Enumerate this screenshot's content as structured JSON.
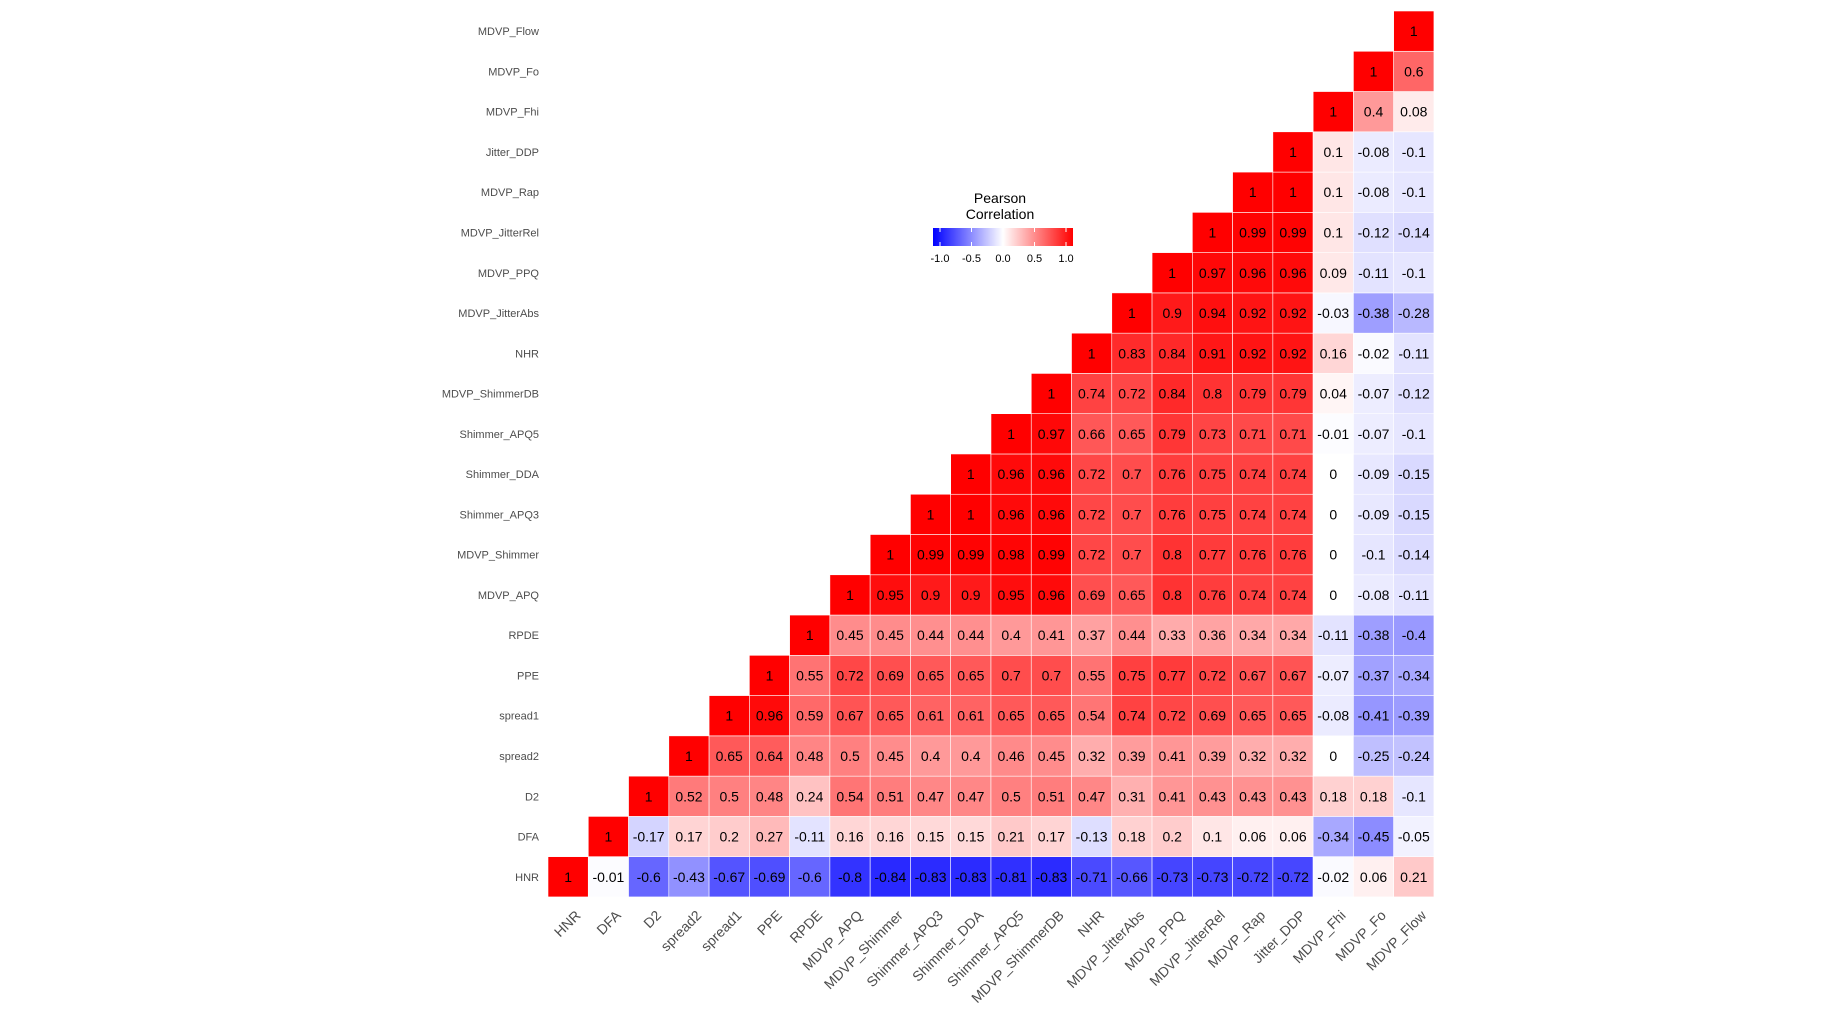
{
  "chart_data": {
    "type": "heatmap",
    "title": "",
    "variables": [
      "HNR",
      "DFA",
      "D2",
      "spread2",
      "spread1",
      "PPE",
      "RPDE",
      "MDVP_APQ",
      "MDVP_Shimmer",
      "Shimmer_APQ3",
      "Shimmer_DDA",
      "Shimmer_APQ5",
      "MDVP_ShimmerDB",
      "NHR",
      "MDVP_JitterAbs",
      "MDVP_PPQ",
      "MDVP_JitterRel",
      "MDVP_Rap",
      "Jitter_DDP",
      "MDVP_Fhi",
      "MDVP_Fo",
      "MDVP_Flow"
    ],
    "x_labels": [
      "HNR",
      "DFA",
      "D2",
      "spread2",
      "spread1",
      "PPE",
      "RPDE",
      "MDVP_APQ",
      "MDVP_Shimmer",
      "Shimmer_APQ3",
      "Shimmer_DDA",
      "Shimmer_APQ5",
      "MDVP_ShimmerDB",
      "NHR",
      "MDVP_JitterAbs",
      "MDVP_PPQ",
      "MDVP_JitterRel",
      "MDVP_Rap",
      "Jitter_DDP",
      "MDVP_Fhi",
      "MDVP_Fo",
      "MDVP_Flow"
    ],
    "y_labels": [
      "HNR",
      "DFA",
      "D2",
      "spread2",
      "spread1",
      "PPE",
      "RPDE",
      "MDVP_APQ",
      "MDVP_Shimmer",
      "Shimmer_APQ3",
      "Shimmer_DDA",
      "Shimmer_APQ5",
      "MDVP_ShimmerDB",
      "NHR",
      "MDVP_JitterAbs",
      "MDVP_PPQ",
      "MDVP_JitterRel",
      "MDVP_Rap",
      "Jitter_DDP",
      "MDVP_Fhi",
      "MDVP_Fo",
      "MDVP_Flow"
    ],
    "upper_triangle_by_column": [
      [
        1
      ],
      [
        -0.01,
        1
      ],
      [
        -0.6,
        -0.17,
        1
      ],
      [
        -0.43,
        0.17,
        0.52,
        1
      ],
      [
        -0.67,
        0.2,
        0.5,
        0.65,
        1
      ],
      [
        -0.69,
        0.27,
        0.48,
        0.64,
        0.96,
        1
      ],
      [
        -0.6,
        -0.11,
        0.24,
        0.48,
        0.59,
        0.55,
        1
      ],
      [
        -0.8,
        0.16,
        0.54,
        0.5,
        0.67,
        0.72,
        0.45,
        1
      ],
      [
        -0.84,
        0.16,
        0.51,
        0.45,
        0.65,
        0.69,
        0.45,
        0.95,
        1
      ],
      [
        -0.83,
        0.15,
        0.47,
        0.4,
        0.61,
        0.65,
        0.44,
        0.9,
        0.99,
        1
      ],
      [
        -0.83,
        0.15,
        0.47,
        0.4,
        0.61,
        0.65,
        0.44,
        0.9,
        0.99,
        1,
        1
      ],
      [
        -0.81,
        0.21,
        0.5,
        0.46,
        0.65,
        0.7,
        0.4,
        0.95,
        0.98,
        0.96,
        0.96,
        1
      ],
      [
        -0.83,
        0.17,
        0.51,
        0.45,
        0.65,
        0.7,
        0.41,
        0.96,
        0.99,
        0.96,
        0.96,
        0.97,
        1
      ],
      [
        -0.71,
        -0.13,
        0.47,
        0.32,
        0.54,
        0.55,
        0.37,
        0.69,
        0.72,
        0.72,
        0.72,
        0.66,
        0.74,
        1
      ],
      [
        -0.66,
        0.18,
        0.31,
        0.39,
        0.74,
        0.75,
        0.44,
        0.65,
        0.7,
        0.7,
        0.7,
        0.65,
        0.72,
        0.83,
        1
      ],
      [
        -0.73,
        0.2,
        0.41,
        0.41,
        0.72,
        0.77,
        0.33,
        0.8,
        0.8,
        0.76,
        0.76,
        0.79,
        0.84,
        0.84,
        0.9,
        1
      ],
      [
        -0.73,
        0.1,
        0.43,
        0.39,
        0.69,
        0.72,
        0.36,
        0.76,
        0.77,
        0.75,
        0.75,
        0.73,
        0.8,
        0.91,
        0.94,
        0.97,
        1
      ],
      [
        -0.72,
        0.06,
        0.43,
        0.32,
        0.65,
        0.67,
        0.34,
        0.74,
        0.76,
        0.74,
        0.74,
        0.71,
        0.79,
        0.92,
        0.92,
        0.96,
        0.99,
        1
      ],
      [
        -0.72,
        0.06,
        0.43,
        0.32,
        0.65,
        0.67,
        0.34,
        0.74,
        0.76,
        0.74,
        0.74,
        0.71,
        0.79,
        0.92,
        0.92,
        0.96,
        0.99,
        1,
        1
      ],
      [
        -0.02,
        -0.34,
        0.18,
        0,
        -0.08,
        -0.07,
        -0.11,
        0,
        0,
        0,
        0,
        -0.01,
        0.04,
        0.16,
        -0.03,
        0.09,
        0.1,
        0.1,
        0.1,
        1
      ],
      [
        0.06,
        -0.45,
        0.18,
        -0.25,
        -0.41,
        -0.37,
        -0.38,
        -0.08,
        -0.1,
        -0.09,
        -0.09,
        -0.07,
        -0.07,
        -0.02,
        -0.38,
        -0.11,
        -0.12,
        -0.08,
        -0.08,
        0.4,
        1
      ],
      [
        0.21,
        -0.05,
        -0.1,
        -0.24,
        -0.39,
        -0.34,
        -0.4,
        -0.11,
        -0.14,
        -0.15,
        -0.15,
        -0.1,
        -0.12,
        -0.11,
        -0.28,
        -0.1,
        -0.14,
        -0.1,
        -0.1,
        0.08,
        0.6,
        1
      ]
    ],
    "legend": {
      "title_lines": [
        "Pearson",
        "Correlation"
      ],
      "ticks": [
        "-1.0",
        "-0.5",
        "0.0",
        "0.5",
        "1.0"
      ],
      "tick_values": [
        -1,
        -0.5,
        0,
        0.5,
        1
      ],
      "placement": "top-center"
    },
    "color_scale": {
      "low": "#0000ff",
      "mid": "#ffffff",
      "high": "#ff0000",
      "limits": [
        -1,
        1
      ]
    }
  }
}
